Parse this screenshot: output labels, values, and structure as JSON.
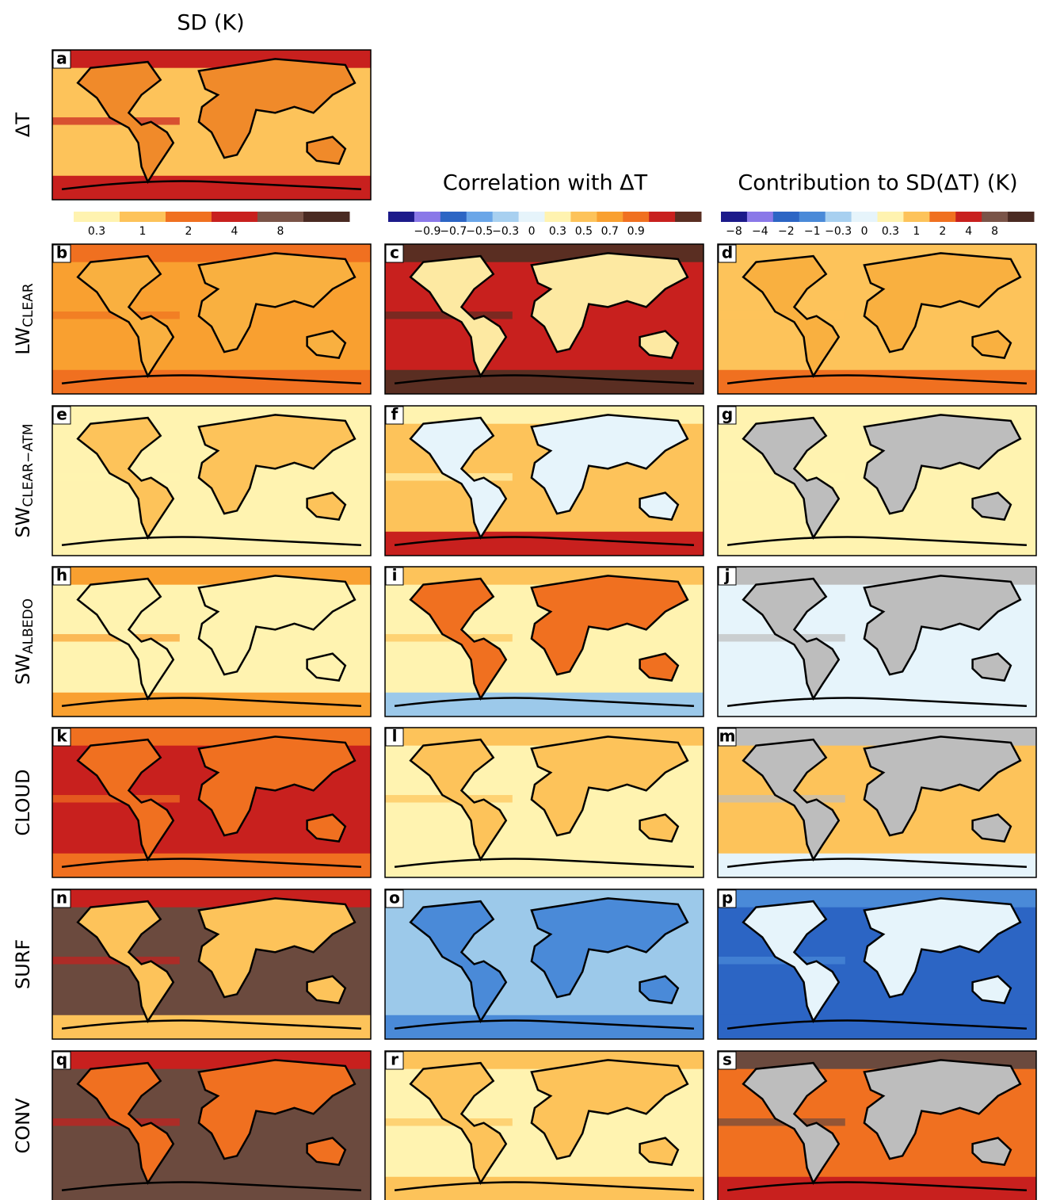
{
  "figure": {
    "column_titles": [
      "SD (K)",
      "Correlation with ΔT",
      "Contribution to SD(ΔT) (K)"
    ],
    "colorbars": [
      {
        "colors": [
          "#fff3b0",
          "#fdc35a",
          "#f07020",
          "#c8201e",
          "#7a5448",
          "#4a2a22"
        ],
        "ticks": [
          "0.3",
          "1",
          "2",
          "4",
          "8"
        ]
      },
      {
        "colors": [
          "#1c1a8a",
          "#8a78e8",
          "#2c65c4",
          "#6aa6e8",
          "#a8d0f0",
          "#e6f4fb",
          "#fff3b0",
          "#fdc35a",
          "#f9a030",
          "#f07020",
          "#c8201e",
          "#5a2e22"
        ],
        "ticks": [
          "−0.9",
          "−0.7",
          "−0.5",
          "−0.3",
          "0",
          "0.3",
          "0.5",
          "0.7",
          "0.9"
        ]
      },
      {
        "colors": [
          "#1c1a8a",
          "#8a78e8",
          "#2c65c4",
          "#4a8ad8",
          "#a8d0f0",
          "#e6f4fb",
          "#fff3b0",
          "#fdc35a",
          "#f07020",
          "#c8201e",
          "#7a5448",
          "#4a2a22"
        ],
        "ticks": [
          "−8",
          "−4",
          "−2",
          "−1",
          "−0.3",
          "0",
          "0.3",
          "1",
          "2",
          "4",
          "8"
        ]
      }
    ],
    "rows": [
      {
        "label": {
          "main": "ΔT"
        },
        "panels": [
          {
            "letter": "a",
            "colors": {
              "base": "#fdc35a",
              "top": "#c8201e",
              "bottom": "#c8201e",
              "land": "#f08a2a"
            }
          }
        ]
      },
      {
        "label": {
          "main": "LW",
          "sub": "CLEAR"
        },
        "panels": [
          {
            "letter": "b",
            "colors": {
              "base": "#f9a030",
              "top": "#f07020",
              "bottom": "#f07020",
              "land": "#f9b040"
            }
          },
          {
            "letter": "c",
            "colors": {
              "base": "#c8201e",
              "top": "#5a2e22",
              "bottom": "#5a2e22",
              "land": "#fde9a2"
            }
          },
          {
            "letter": "d",
            "colors": {
              "base": "#fdc35a",
              "top": "#fdc35a",
              "bottom": "#f07020",
              "land": "#f9b040"
            }
          }
        ]
      },
      {
        "label": {
          "main": "SW",
          "sub": "CLEAR−ATM"
        },
        "panels": [
          {
            "letter": "e",
            "colors": {
              "base": "#fff3b0",
              "top": "#fff3b0",
              "bottom": "#fff3b0",
              "land": "#fdc35a"
            }
          },
          {
            "letter": "f",
            "colors": {
              "base": "#fdc35a",
              "top": "#fff3b0",
              "bottom": "#c8201e",
              "land": "#e6f4fb"
            }
          },
          {
            "letter": "g",
            "colors": {
              "base": "#fff3b0",
              "top": "#fff3b0",
              "bottom": "#fff3b0",
              "land": "#bdbdbd"
            }
          }
        ]
      },
      {
        "label": {
          "main": "SW",
          "sub": "ALBEDO"
        },
        "panels": [
          {
            "letter": "h",
            "colors": {
              "base": "#fff3b0",
              "top": "#f9a030",
              "bottom": "#f9a030",
              "land": "#fff3b0"
            }
          },
          {
            "letter": "i",
            "colors": {
              "base": "#fff3b0",
              "top": "#fdc35a",
              "bottom": "#9cc9ea",
              "land": "#f07020"
            }
          },
          {
            "letter": "j",
            "colors": {
              "base": "#e6f4fb",
              "top": "#bdbdbd",
              "bottom": "#e6f4fb",
              "land": "#bdbdbd"
            }
          }
        ]
      },
      {
        "label": {
          "main": "CLOUD"
        },
        "panels": [
          {
            "letter": "k",
            "colors": {
              "base": "#c8201e",
              "top": "#f07020",
              "bottom": "#f07020",
              "land": "#f07020"
            }
          },
          {
            "letter": "l",
            "colors": {
              "base": "#fff3b0",
              "top": "#fdc35a",
              "bottom": "#fff3b0",
              "land": "#fdc35a"
            }
          },
          {
            "letter": "m",
            "colors": {
              "base": "#fdc35a",
              "top": "#bdbdbd",
              "bottom": "#e6f4fb",
              "land": "#bdbdbd"
            }
          }
        ]
      },
      {
        "label": {
          "main": "SURF"
        },
        "panels": [
          {
            "letter": "n",
            "colors": {
              "base": "#6b4a3e",
              "top": "#c8201e",
              "bottom": "#fdc35a",
              "land": "#fdc35a"
            }
          },
          {
            "letter": "o",
            "colors": {
              "base": "#9cc9ea",
              "top": "#9cc9ea",
              "bottom": "#4a8ad8",
              "land": "#4a8ad8"
            }
          },
          {
            "letter": "p",
            "colors": {
              "base": "#2c65c4",
              "top": "#4a8ad8",
              "bottom": "#2c65c4",
              "land": "#e6f4fb"
            }
          }
        ]
      },
      {
        "label": {
          "main": "CONV"
        },
        "panels": [
          {
            "letter": "q",
            "colors": {
              "base": "#6b4a3e",
              "top": "#c8201e",
              "bottom": "#6b4a3e",
              "land": "#f07020"
            }
          },
          {
            "letter": "r",
            "colors": {
              "base": "#fff3b0",
              "top": "#fdc35a",
              "bottom": "#fdc35a",
              "land": "#fdc35a"
            }
          },
          {
            "letter": "s",
            "colors": {
              "base": "#f07020",
              "top": "#6b4a3e",
              "bottom": "#c8201e",
              "land": "#bdbdbd"
            }
          }
        ]
      }
    ]
  }
}
